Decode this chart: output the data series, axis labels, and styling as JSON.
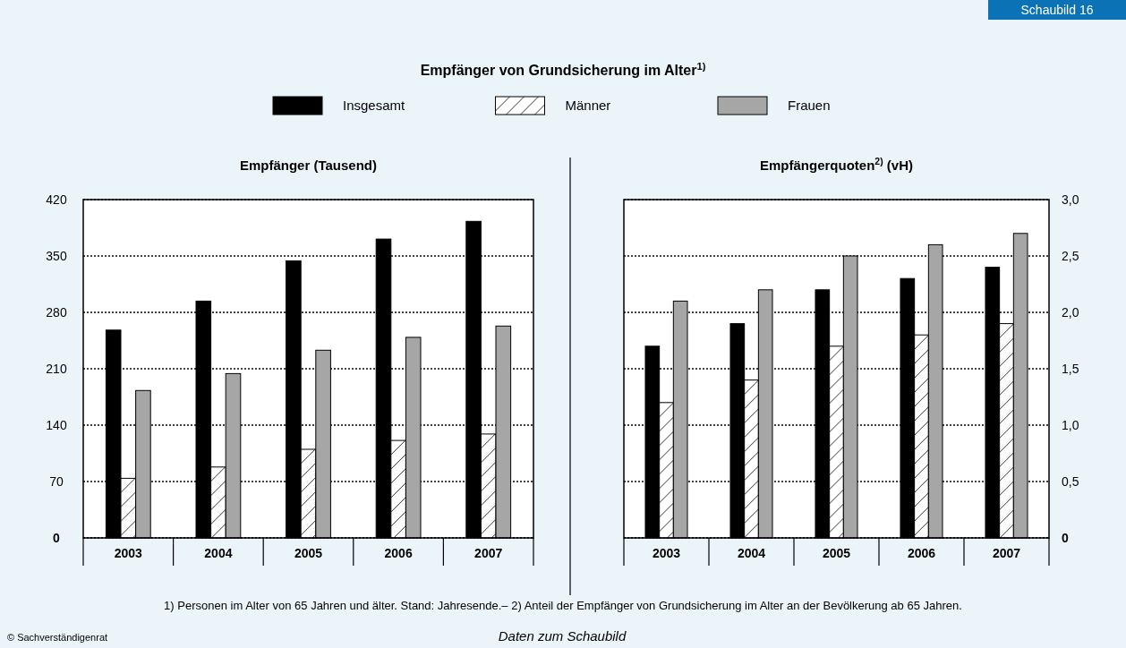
{
  "chart_data": [
    {
      "type": "bar",
      "title": "Empfänger von Grundsicherung im Alter$^{1)}$",
      "subtitle": "Empfänger (Tausend)",
      "categories": [
        "2003",
        "2004",
        "2005",
        "2006",
        "2007"
      ],
      "series": [
        {
          "name": "Insgesamt",
          "color": "#000000",
          "values": [
            258,
            294,
            344,
            371,
            393
          ]
        },
        {
          "name": "Männer",
          "color": "#ffffff",
          "values": [
            74,
            88,
            110,
            121,
            129
          ]
        },
        {
          "name": "Frauen",
          "color": "#a6a6a6",
          "values": [
            183,
            204,
            233,
            249,
            263
          ]
        }
      ],
      "ylim": [
        0,
        420
      ],
      "yticks": [
        0,
        70,
        140,
        210,
        280,
        350,
        420
      ],
      "grid": "y",
      "legend": "top",
      "annotations": [
        "1) Personen im Alter von 65 Jahren und älter. Stand: Jahresende.– 2) Anteil der Empfänger von Grundsicherung im Alter an der Bevölkerung ab 65 Jahren.",
        "© Sachverständigenrat",
        "Daten zum Schaubild",
        "Schaubild 16"
      ]
    },
    {
      "type": "bar",
      "subtitle": "Empfängerquoten$^{2)}$ (vH)",
      "categories": [
        "2003",
        "2004",
        "2005",
        "2006",
        "2007"
      ],
      "series": [
        {
          "color": "#000000",
          "values": [
            1.7,
            1.9,
            2.2,
            2.3,
            2.4
          ]
        },
        {
          "color": "#ffffff",
          "values": [
            1.2,
            1.4,
            1.7,
            1.8,
            1.9
          ]
        },
        {
          "color": "#a6a6a6",
          "values": [
            2.1,
            2.2,
            2.5,
            2.6,
            2.7
          ]
        }
      ],
      "ylim": [
        0,
        3
      ],
      "yticks": [
        {
          "value": 0,
          "label": "0"
        },
        {
          "value": 0.5,
          "label": "0,5"
        },
        {
          "value": 1,
          "label": "1,0"
        },
        {
          "value": 1.5,
          "label": "1,5"
        },
        {
          "value": 2,
          "label": "2,0"
        },
        {
          "value": 2.5,
          "label": "2,5"
        },
        {
          "value": 3,
          "label": "3,0"
        }
      ],
      "grid": "y"
    }
  ]
}
